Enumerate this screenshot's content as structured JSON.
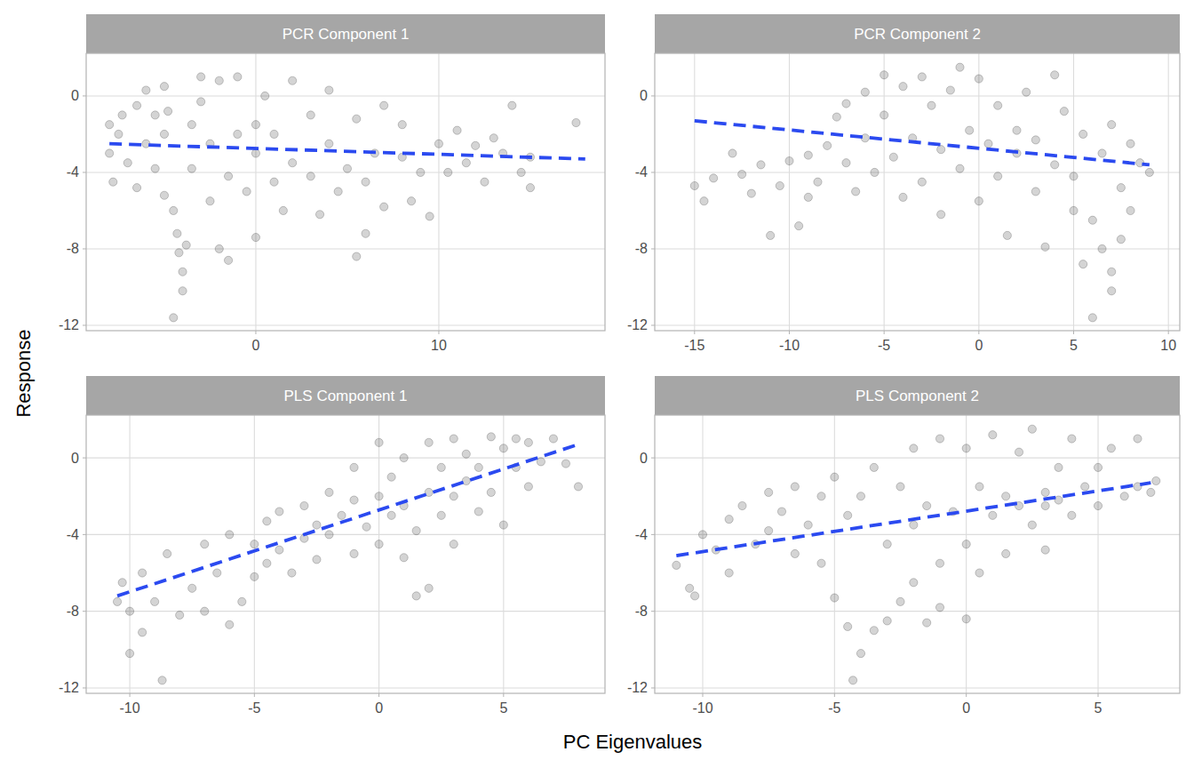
{
  "chart_data": {
    "type": "scatter",
    "x_label": "PC Eigenvalues",
    "y_label": "Response",
    "ylim": [
      -12.28,
      2.23
    ],
    "yticks": [
      -12,
      -8,
      -4,
      0
    ],
    "grid": true,
    "panels": [
      {
        "title": "PCR Component 1",
        "xlim": [
          -9.27,
          19.08
        ],
        "xticks": [
          0,
          10
        ],
        "series": [
          {
            "type": "scatter",
            "color": "#000000",
            "marker": "circle",
            "x": [
              -8,
              -8,
              -7.8,
              -7.5,
              -7.3,
              -7,
              -6.5,
              -6.5,
              -6,
              -6,
              -5.5,
              -5.5,
              -5,
              -5,
              -5,
              -4.8,
              -4.5,
              -4.3,
              -4.2,
              -4,
              -4,
              -4.5,
              -3.8,
              -3.5,
              -3.5,
              -3,
              -3,
              -2.5,
              -2.5,
              -2,
              -2,
              -1.5,
              -1.5,
              -1,
              -1,
              -0.5,
              0,
              0,
              0,
              0.5,
              1,
              1,
              1.5,
              2,
              2,
              3,
              3,
              3.5,
              4,
              4,
              4.5,
              5,
              5.5,
              5.5,
              6,
              6,
              6.5,
              7,
              7,
              8,
              8,
              8.5,
              9,
              9.5,
              10,
              10.5,
              11,
              11.5,
              12,
              12.5,
              13,
              13.5,
              14,
              14.5,
              15,
              15,
              17.5
            ],
            "values": [
              -1.5,
              -3,
              -4.5,
              -2,
              -1,
              -3.5,
              -0.5,
              -4.8,
              0.3,
              -2.5,
              -1,
              -3.8,
              0.5,
              -2,
              -5.2,
              -0.8,
              -6,
              -7.2,
              -8.2,
              -9.2,
              -10.2,
              -11.6,
              -7.8,
              -1.5,
              -3.8,
              -0.3,
              1,
              -5.5,
              -2.5,
              0.8,
              -8,
              -8.6,
              -4.2,
              1,
              -2,
              -5,
              -1.5,
              -3,
              -7.4,
              0,
              -2,
              -4.5,
              -6,
              0.8,
              -3.5,
              -1,
              -4.2,
              -6.2,
              0.3,
              -2.5,
              -5,
              -3.8,
              -1.2,
              -8.4,
              -4.5,
              -7.2,
              -3,
              -0.5,
              -5.8,
              -3.2,
              -1.5,
              -5.5,
              -4,
              -6.3,
              -2.5,
              -4,
              -1.8,
              -3.5,
              -2.6,
              -4.5,
              -2.2,
              -3,
              -0.5,
              -4,
              -4.8,
              -3.2,
              -1.4
            ]
          },
          {
            "type": "line",
            "line_style": "dashed",
            "color": "#2b4af0",
            "x": [
              -8,
              18
            ],
            "values": [
              -2.5,
              -3.3
            ]
          }
        ]
      },
      {
        "title": "PCR Component 2",
        "xlim": [
          -17.1,
          10.6
        ],
        "xticks": [
          -15,
          -10,
          -5,
          0,
          5,
          10
        ],
        "series": [
          {
            "type": "scatter",
            "color": "#000000",
            "marker": "circle",
            "x": [
              -15,
              -14.5,
              -14,
              -13,
              -12.5,
              -12,
              -11.5,
              -11,
              -10.5,
              -10,
              -9.5,
              -9,
              -9,
              -8.5,
              -8,
              -7.5,
              -7,
              -7,
              -6.5,
              -6,
              -6,
              -5.5,
              -5,
              -5,
              -4.5,
              -4,
              -4,
              -3.5,
              -3,
              -3,
              -2.5,
              -2,
              -2,
              -1.5,
              -1,
              -1,
              -0.5,
              0,
              0,
              0.5,
              1,
              1,
              1.5,
              2,
              2,
              2.5,
              3,
              3,
              3.5,
              4,
              4,
              4.5,
              5,
              5,
              5.5,
              5.5,
              6,
              6,
              6.5,
              6.5,
              7,
              7,
              7,
              7.5,
              7.5,
              8,
              8,
              8.5,
              9
            ],
            "values": [
              -4.7,
              -5.5,
              -4.3,
              -3,
              -4.1,
              -5.1,
              -3.6,
              -7.3,
              -4.7,
              -3.4,
              -6.8,
              -5.3,
              -3.1,
              -4.5,
              -2.6,
              -1.1,
              -0.4,
              -3.5,
              -5,
              0.2,
              -2.2,
              -4,
              1.1,
              -1,
              -3.2,
              -5.3,
              0.5,
              -2.2,
              1,
              -4.5,
              -0.5,
              -6.2,
              -2.8,
              0.3,
              -3.8,
              1.5,
              -1.8,
              -5.5,
              0.9,
              -2.5,
              -0.5,
              -4.2,
              -7.3,
              -1.8,
              -3,
              0.2,
              -5,
              -2.3,
              -7.9,
              1.1,
              -3.6,
              -0.8,
              -6,
              -4.2,
              -2,
              -8.8,
              -11.6,
              -6.5,
              -3,
              -8,
              -9.2,
              -10.2,
              -1.5,
              -7.5,
              -4.8,
              -6,
              -2.5,
              -3.5,
              -4
            ]
          },
          {
            "type": "line",
            "line_style": "dashed",
            "color": "#2b4af0",
            "x": [
              -15,
              9
            ],
            "values": [
              -1.3,
              -3.6
            ]
          }
        ]
      },
      {
        "title": "PLS Component 1",
        "xlim": [
          -11.75,
          9.07
        ],
        "xticks": [
          -10,
          -5,
          0,
          5
        ],
        "series": [
          {
            "type": "scatter",
            "color": "#000000",
            "marker": "circle",
            "x": [
              -10.5,
              -10.3,
              -10,
              -10,
              -9.5,
              -9.5,
              -9,
              -8.7,
              -8.5,
              -8,
              -7.5,
              -7,
              -7,
              -6.5,
              -6,
              -6,
              -5.5,
              -5,
              -5,
              -4.5,
              -4.5,
              -4,
              -4,
              -3.5,
              -3,
              -3,
              -2.5,
              -2.5,
              -2,
              -2,
              -1.5,
              -1,
              -1,
              -1,
              -0.5,
              0,
              0,
              0,
              0.5,
              0.5,
              1,
              1,
              1,
              1.5,
              1.5,
              2,
              2,
              2,
              2.5,
              2.5,
              3,
              3,
              3,
              3.5,
              3.5,
              4,
              4,
              4.5,
              4.5,
              5,
              5,
              5.5,
              5.5,
              6,
              6,
              6.5,
              7,
              7.5,
              8
            ],
            "values": [
              -7.5,
              -6.5,
              -10.2,
              -8,
              -9.1,
              -6,
              -7.5,
              -11.6,
              -5,
              -8.2,
              -6.8,
              -4.5,
              -8,
              -6,
              -8.7,
              -4,
              -7.5,
              -4.5,
              -6.2,
              -3.3,
              -5.5,
              -2.8,
              -4.8,
              -6,
              -2.5,
              -4.2,
              -3.5,
              -5.3,
              -1.8,
              -4,
              -3,
              -0.5,
              -2.2,
              -5,
              -3.6,
              0.8,
              -2,
              -4.5,
              -1,
              -3,
              0,
              -2.5,
              -5.2,
              -3.8,
              -7.2,
              0.8,
              -1.8,
              -6.8,
              -0.5,
              -3,
              1,
              -2,
              -4.5,
              0.2,
              -1.2,
              -0.5,
              -2.8,
              1.1,
              -1.8,
              0.5,
              -3.5,
              -0.5,
              1,
              -1.5,
              0.8,
              -0.2,
              1,
              -0.3,
              -1.5
            ]
          },
          {
            "type": "line",
            "line_style": "dashed",
            "color": "#2b4af0",
            "x": [
              -10.5,
              8
            ],
            "values": [
              -7.2,
              0.7
            ]
          }
        ]
      },
      {
        "title": "PLS Component 2",
        "xlim": [
          -11.82,
          8.1
        ],
        "xticks": [
          -10,
          -5,
          0,
          5
        ],
        "series": [
          {
            "type": "scatter",
            "color": "#000000",
            "marker": "circle",
            "x": [
              -11,
              -10.5,
              -10.3,
              -10,
              -9.5,
              -9,
              -9,
              -8.5,
              -8,
              -7.5,
              -7.5,
              -7,
              -6.5,
              -6.5,
              -6,
              -5.5,
              -5.5,
              -5,
              -5,
              -4.5,
              -4.5,
              -4.3,
              -4,
              -4,
              -3.5,
              -3.5,
              -3,
              -3,
              -2.5,
              -2.5,
              -2,
              -2,
              -2,
              -1.5,
              -1.5,
              -1,
              -1,
              -1,
              -0.5,
              0,
              0,
              0,
              0.5,
              0.5,
              1,
              1,
              1.5,
              1.5,
              2,
              2,
              2.5,
              2.5,
              3,
              3,
              3,
              3.5,
              3.5,
              4,
              4,
              4.5,
              5,
              5,
              5.5,
              6,
              6.5,
              6.5,
              7,
              7.2
            ],
            "values": [
              -5.6,
              -6.8,
              -7.2,
              -4,
              -4.8,
              -3.2,
              -6,
              -2.5,
              -4.5,
              -1.8,
              -3.8,
              -2.8,
              -5,
              -1.5,
              -3.5,
              -2,
              -5.5,
              -1,
              -7.3,
              -3,
              -8.8,
              -11.6,
              -10.2,
              -2,
              -9,
              -0.5,
              -4.5,
              -8.5,
              -1.5,
              -7.5,
              0.5,
              -3.5,
              -6.5,
              -8.6,
              -2.5,
              1,
              -5.5,
              -7.8,
              -2.8,
              0.5,
              -4.5,
              -8.4,
              -1.5,
              -6,
              -3,
              1.2,
              -2,
              -5,
              0.3,
              -2.5,
              -3.5,
              1.5,
              -1.8,
              -2.5,
              -4.8,
              -0.5,
              -2.2,
              1,
              -3,
              -1.5,
              -0.5,
              -2.5,
              0.5,
              -2,
              1,
              -1.5,
              -1.8,
              -1.2
            ]
          },
          {
            "type": "line",
            "line_style": "dashed",
            "color": "#2b4af0",
            "x": [
              -11,
              7
            ],
            "values": [
              -5.1,
              -1.3
            ]
          }
        ]
      }
    ]
  }
}
